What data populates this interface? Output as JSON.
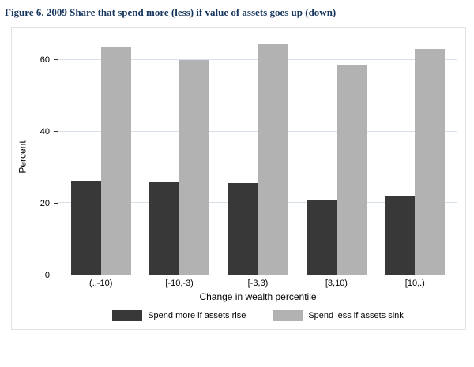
{
  "title": "Figure 6. 2009 Share that spend more (less) if value of assets goes up (down)",
  "title_color": "#17365d",
  "chart_data": {
    "type": "bar",
    "categories": [
      "(.,-10)",
      "[-10,-3)",
      "[-3,3)",
      "[3,10)",
      "[10,.)"
    ],
    "series": [
      {
        "name": "Spend more if assets rise",
        "color": "#383838",
        "values": [
          26.3,
          25.8,
          25.5,
          20.7,
          22.0
        ]
      },
      {
        "name": "Spend less if assets sink",
        "color": "#b2b2b2",
        "values": [
          63.5,
          60.0,
          64.5,
          58.7,
          63.2
        ]
      }
    ],
    "xlabel": "Change in wealth percentile",
    "ylabel": "Percent",
    "ylim": [
      0,
      66
    ],
    "yticks": [
      0,
      20,
      40,
      60
    ],
    "grid": true,
    "gridline_color": "#d8e1ea",
    "legend_position": "bottom"
  }
}
